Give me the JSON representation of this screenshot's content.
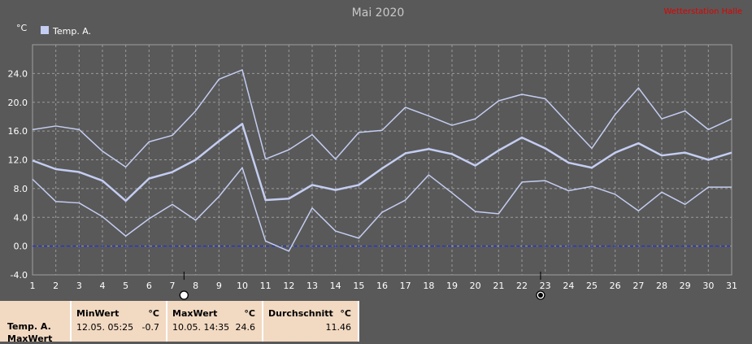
{
  "app": {
    "watermark": "Wetterstation Halle"
  },
  "chart_data": {
    "type": "line",
    "title": "Mai 2020",
    "ylabel": "°C",
    "xlabel": "",
    "x": [
      1,
      2,
      3,
      4,
      5,
      6,
      7,
      8,
      9,
      10,
      11,
      12,
      13,
      14,
      15,
      16,
      17,
      18,
      19,
      20,
      21,
      22,
      23,
      24,
      25,
      26,
      27,
      28,
      29,
      30,
      31
    ],
    "x_ticks": [
      "1",
      "2",
      "3",
      "4",
      "5",
      "6",
      "7",
      "8",
      "9",
      "10",
      "11",
      "12",
      "13",
      "14",
      "15",
      "16",
      "17",
      "18",
      "19",
      "20",
      "21",
      "22",
      "23",
      "24",
      "25",
      "26",
      "27",
      "28",
      "29",
      "30",
      "31"
    ],
    "y_ticks": [
      "-4.0",
      "0.0",
      "4.0",
      "8.0",
      "12.0",
      "16.0",
      "20.0",
      "24.0"
    ],
    "ylim": [
      -4,
      28
    ],
    "grid": true,
    "legend": {
      "position": "top-left",
      "entries": [
        "Temp. A."
      ]
    },
    "series": [
      {
        "name": "Temp. A.",
        "role": "max",
        "color": "#c4cdf2",
        "width": 1.5,
        "values": [
          16.2,
          16.7,
          16.2,
          13.2,
          11.0,
          14.5,
          15.4,
          18.8,
          23.2,
          24.5,
          12.1,
          13.4,
          15.5,
          12.1,
          15.8,
          16.1,
          19.3,
          18.1,
          16.8,
          17.7,
          20.2,
          21.1,
          20.5,
          17.0,
          13.6,
          18.3,
          22.0,
          17.7,
          18.8,
          16.2,
          17.7
        ]
      },
      {
        "name": "Temp. A.",
        "role": "mean",
        "color": "#c4cdf2",
        "width": 2.5,
        "values": [
          11.9,
          10.7,
          10.3,
          9.1,
          6.3,
          9.4,
          10.3,
          12.0,
          14.6,
          17.0,
          6.4,
          6.6,
          8.5,
          7.8,
          8.5,
          10.8,
          12.9,
          13.5,
          12.8,
          11.2,
          13.3,
          15.1,
          13.6,
          11.6,
          10.9,
          13.0,
          14.3,
          12.6,
          13.0,
          12.0,
          13.0
        ]
      },
      {
        "name": "Temp. A.",
        "role": "min",
        "color": "#c4cdf2",
        "width": 1.5,
        "values": [
          9.3,
          6.2,
          6.0,
          4.1,
          1.4,
          3.8,
          5.8,
          3.6,
          6.9,
          10.9,
          0.7,
          -0.7,
          5.3,
          2.1,
          1.1,
          4.7,
          6.4,
          9.9,
          7.4,
          4.8,
          4.5,
          8.9,
          9.1,
          7.7,
          8.3,
          7.2,
          4.9,
          7.5,
          5.8,
          8.2,
          8.2
        ]
      }
    ],
    "reference_line": {
      "y": 0,
      "color": "#1f2fd8"
    },
    "markers": [
      {
        "day": 7.5,
        "symbol": "full-moon-icon"
      },
      {
        "day": 22.8,
        "symbol": "new-moon-icon"
      }
    ]
  },
  "stats": {
    "series_label": "Temp. A.",
    "row2_label": "MaxWert",
    "min": {
      "header": "MinWert",
      "unit": "°C",
      "datetime": "12.05.  05:25",
      "value": "-0.7"
    },
    "max": {
      "header": "MaxWert",
      "unit": "°C",
      "datetime": "10.05.  14:35",
      "value": "24.6"
    },
    "avg": {
      "header": "Durchschnitt",
      "unit": "°C",
      "value": "11.46"
    }
  }
}
